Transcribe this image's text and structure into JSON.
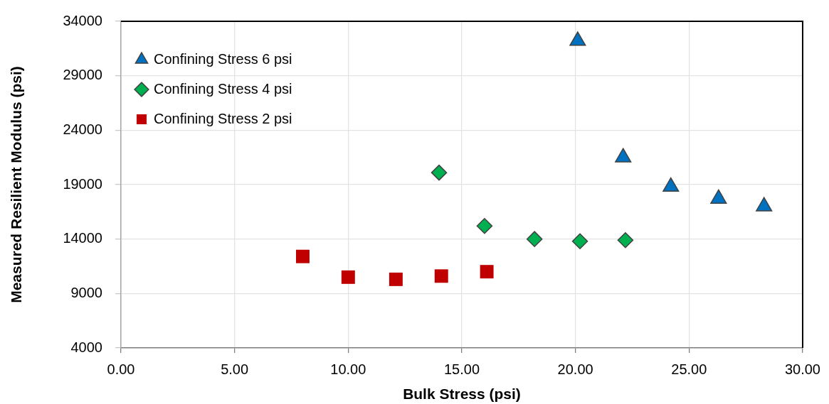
{
  "chart_data": {
    "type": "scatter",
    "xlabel": "Bulk Stress (psi)",
    "ylabel": "Measured Resilient Modulus (psi)",
    "xlim": [
      0,
      30
    ],
    "xticks": [
      {
        "value": 0,
        "label": "0.00"
      },
      {
        "value": 5,
        "label": "5.00"
      },
      {
        "value": 10,
        "label": "10.00"
      },
      {
        "value": 15,
        "label": "15.00"
      },
      {
        "value": 20,
        "label": "20.00"
      },
      {
        "value": 25,
        "label": "25.00"
      },
      {
        "value": 30,
        "label": "30.00"
      }
    ],
    "ylim": [
      4000,
      34000
    ],
    "yticks": [
      4000,
      9000,
      14000,
      19000,
      24000,
      29000,
      34000
    ],
    "grid": true,
    "legend": "top left",
    "series": [
      {
        "name": "Confining Stress 6 psi",
        "color": "#0070c0",
        "marker": "triangle",
        "x": [
          20.1,
          22.1,
          24.2,
          26.3,
          28.3
        ],
        "values": [
          32200,
          21500,
          18800,
          17700,
          17000
        ]
      },
      {
        "name": "Confining Stress 4 psi",
        "color": "#00b050",
        "marker": "diamond",
        "x": [
          14.0,
          16.0,
          18.2,
          20.2,
          22.2
        ],
        "values": [
          20100,
          15200,
          14000,
          13800,
          13900
        ]
      },
      {
        "name": "Confining Stress 2 psi",
        "color": "#c00000",
        "marker": "square",
        "x": [
          8.0,
          10.0,
          12.1,
          14.1,
          16.1
        ],
        "values": [
          12400,
          10500,
          10300,
          10600,
          11000
        ]
      }
    ]
  }
}
